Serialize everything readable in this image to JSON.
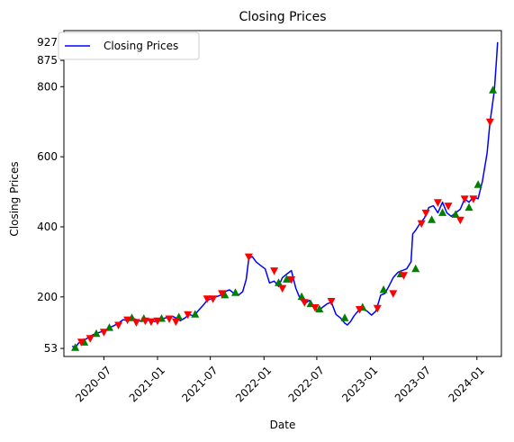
{
  "chart_data": {
    "type": "line",
    "title": "Closing Prices",
    "xlabel": "Date",
    "ylabel": "Closing Prices",
    "xlim": [
      "2020-02-15",
      "2024-03-25"
    ],
    "ylim": [
      30,
      960
    ],
    "yticks": [
      53,
      200,
      400,
      600,
      800,
      875,
      927
    ],
    "xticks": [
      "2020-07",
      "2021-01",
      "2021-07",
      "2022-01",
      "2022-07",
      "2023-01",
      "2023-07",
      "2024-01"
    ],
    "legend": {
      "position": "top-left",
      "entries": [
        "Closing Prices"
      ]
    },
    "grid": false,
    "colors": {
      "line": "#0000ff",
      "buy": "#008000",
      "sell": "#ff0000"
    },
    "series": [
      {
        "name": "Closing Prices",
        "x": [
          "2020-03-15",
          "2020-03-23",
          "2020-04-05",
          "2020-04-20",
          "2020-05-05",
          "2020-05-20",
          "2020-06-05",
          "2020-06-20",
          "2020-07-05",
          "2020-07-20",
          "2020-08-05",
          "2020-08-20",
          "2020-09-05",
          "2020-09-20",
          "2020-10-05",
          "2020-10-20",
          "2020-11-05",
          "2020-11-20",
          "2020-12-05",
          "2020-12-20",
          "2021-01-05",
          "2021-01-20",
          "2021-02-05",
          "2021-02-20",
          "2021-03-05",
          "2021-03-20",
          "2021-04-05",
          "2021-04-20",
          "2021-05-05",
          "2021-05-20",
          "2021-06-05",
          "2021-06-20",
          "2021-07-05",
          "2021-07-20",
          "2021-08-05",
          "2021-08-20",
          "2021-09-05",
          "2021-09-20",
          "2021-10-05",
          "2021-10-20",
          "2021-11-01",
          "2021-11-10",
          "2021-11-22",
          "2021-12-05",
          "2021-12-20",
          "2022-01-05",
          "2022-01-20",
          "2022-02-05",
          "2022-02-20",
          "2022-03-05",
          "2022-03-20",
          "2022-04-05",
          "2022-04-20",
          "2022-05-05",
          "2022-05-20",
          "2022-06-05",
          "2022-06-20",
          "2022-07-05",
          "2022-07-20",
          "2022-08-05",
          "2022-08-20",
          "2022-09-05",
          "2022-09-20",
          "2022-10-05",
          "2022-10-14",
          "2022-10-25",
          "2022-11-05",
          "2022-11-20",
          "2022-12-05",
          "2022-12-20",
          "2023-01-05",
          "2023-01-20",
          "2023-02-05",
          "2023-02-20",
          "2023-03-05",
          "2023-03-20",
          "2023-04-05",
          "2023-04-20",
          "2023-05-05",
          "2023-05-20",
          "2023-05-26",
          "2023-06-05",
          "2023-06-20",
          "2023-07-05",
          "2023-07-20",
          "2023-08-05",
          "2023-08-20",
          "2023-09-05",
          "2023-09-20",
          "2023-10-05",
          "2023-10-20",
          "2023-11-05",
          "2023-11-20",
          "2023-12-05",
          "2023-12-20",
          "2024-01-05",
          "2024-01-20",
          "2024-02-05",
          "2024-02-15",
          "2024-02-22",
          "2024-03-01",
          "2024-03-08",
          "2024-03-12"
        ],
        "y": [
          60,
          53,
          68,
          75,
          82,
          90,
          96,
          100,
          105,
          112,
          118,
          125,
          135,
          132,
          140,
          135,
          130,
          132,
          134,
          130,
          131,
          138,
          142,
          145,
          140,
          132,
          140,
          150,
          145,
          160,
          175,
          190,
          195,
          200,
          205,
          215,
          220,
          210,
          205,
          215,
          250,
          310,
          315,
          300,
          290,
          280,
          240,
          245,
          230,
          255,
          265,
          275,
          225,
          195,
          180,
          190,
          170,
          160,
          170,
          180,
          185,
          150,
          140,
          125,
          120,
          130,
          145,
          160,
          165,
          160,
          148,
          160,
          205,
          210,
          230,
          255,
          270,
          275,
          280,
          300,
          380,
          390,
          410,
          425,
          455,
          460,
          440,
          470,
          440,
          430,
          440,
          450,
          480,
          470,
          485,
          480,
          530,
          610,
          700,
          740,
          790,
          875,
          927
        ]
      }
    ],
    "buy_signals": {
      "x": [
        "2020-03-25",
        "2020-04-25",
        "2020-06-05",
        "2020-07-20",
        "2020-10-05",
        "2020-11-15",
        "2021-01-15",
        "2021-03-15",
        "2021-05-10",
        "2021-08-20",
        "2021-09-25",
        "2022-02-20",
        "2022-03-20",
        "2022-05-10",
        "2022-06-10",
        "2022-07-10",
        "2022-10-05",
        "2022-12-05",
        "2023-02-15",
        "2023-04-15",
        "2023-06-05",
        "2023-07-30",
        "2023-09-05",
        "2023-10-20",
        "2023-12-05",
        "2024-01-05",
        "2024-02-25"
      ],
      "y": [
        55,
        70,
        95,
        112,
        140,
        138,
        138,
        142,
        150,
        205,
        212,
        240,
        250,
        200,
        180,
        165,
        140,
        170,
        220,
        265,
        280,
        420,
        440,
        435,
        455,
        520,
        790
      ]
    },
    "sell_signals": {
      "x": [
        "2020-04-15",
        "2020-05-15",
        "2020-07-01",
        "2020-08-20",
        "2020-09-20",
        "2020-10-20",
        "2020-11-20",
        "2020-12-10",
        "2021-01-01",
        "2021-02-10",
        "2021-03-05",
        "2021-04-15",
        "2021-06-20",
        "2021-07-10",
        "2021-08-10",
        "2021-11-10",
        "2022-02-05",
        "2022-03-05",
        "2022-04-05",
        "2022-05-20",
        "2022-06-25",
        "2022-08-20",
        "2022-11-25",
        "2023-01-25",
        "2023-03-20",
        "2023-04-25",
        "2023-06-25",
        "2023-07-10",
        "2023-08-20",
        "2023-09-25",
        "2023-11-05",
        "2023-11-20",
        "2023-12-20",
        "2024-02-15"
      ],
      "y": [
        72,
        82,
        100,
        120,
        135,
        128,
        132,
        130,
        132,
        138,
        130,
        150,
        195,
        195,
        210,
        315,
        275,
        225,
        250,
        185,
        170,
        188,
        165,
        168,
        210,
        262,
        410,
        440,
        470,
        460,
        420,
        480,
        480,
        700
      ]
    }
  }
}
